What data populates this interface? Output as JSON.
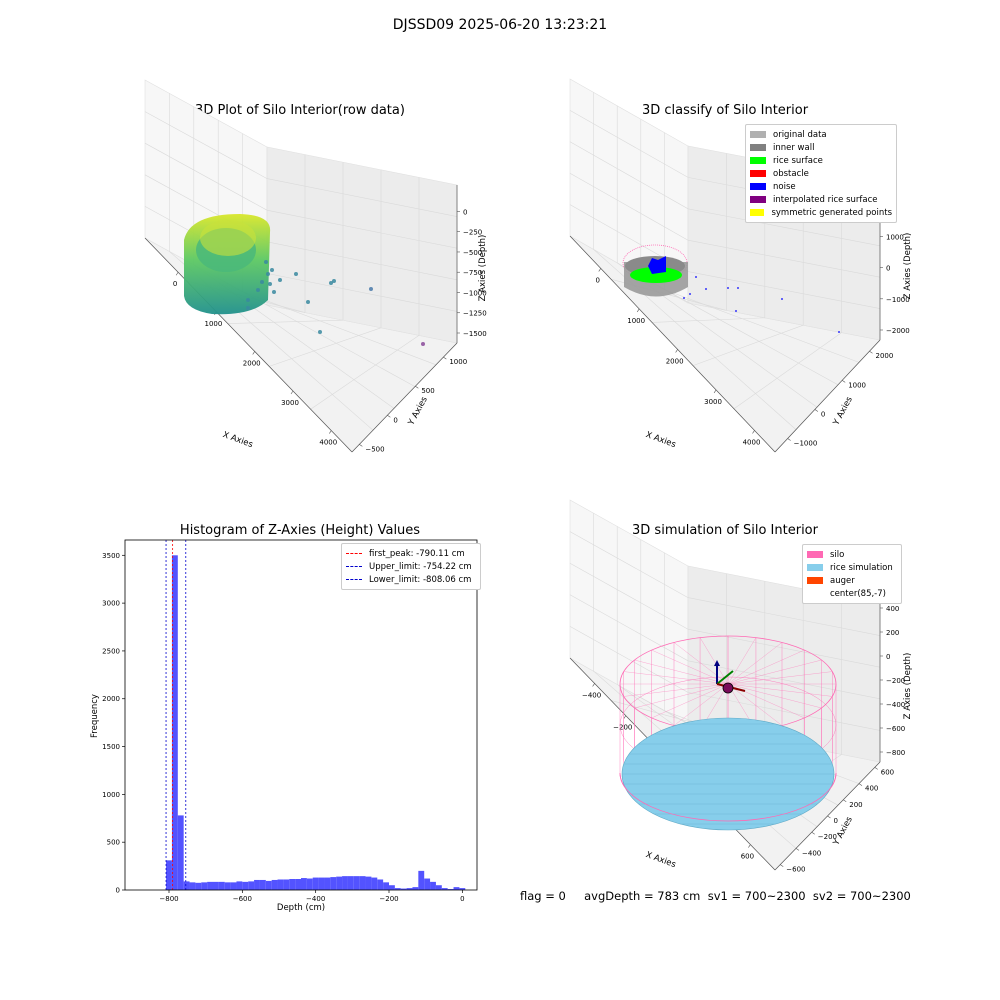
{
  "suptitle": "DJSSD09 2025-06-20 13:23:21",
  "colors": {
    "original": "#b0b0b0",
    "inner_wall": "#808080",
    "rice_surface": "#00ff00",
    "obstacle": "#ff0000",
    "noise": "#0000ff",
    "interpolated": "#800080",
    "symmetric": "#ffff00",
    "silo": "#ff69b4",
    "rice_sim": "#87ceeb",
    "auger": "#ff4500",
    "hist_bar": "#4a4aff"
  },
  "panels": {
    "p1": {
      "title": "3D Plot of Silo Interior(row data)"
    },
    "p2": {
      "title": "3D classify of Silo Interior"
    },
    "p3": {
      "title": "Histogram of Z-Axies (Height) Values"
    },
    "p4": {
      "title": "3D simulation of Silo Interior"
    }
  },
  "legend2": [
    {
      "label": "original data",
      "color": "#b0b0b0"
    },
    {
      "label": "inner wall",
      "color": "#808080"
    },
    {
      "label": "rice surface",
      "color": "#00ff00"
    },
    {
      "label": "obstacle",
      "color": "#ff0000"
    },
    {
      "label": "noise",
      "color": "#0000ff"
    },
    {
      "label": "interpolated rice surface",
      "color": "#800080"
    },
    {
      "label": "symmetric generated points",
      "color": "#ffff00"
    }
  ],
  "legend3": [
    {
      "label": "first_peak: -790.11 cm",
      "color": "#ff0000"
    },
    {
      "label": "Upper_limit: -754.22 cm",
      "color": "#0000cc"
    },
    {
      "label": "Lower_limit: -808.06 cm",
      "color": "#0000cc"
    }
  ],
  "legend4": [
    {
      "label": "silo",
      "color": "#ff69b4"
    },
    {
      "label": "rice simulation",
      "color": "#87ceeb"
    },
    {
      "label": "auger",
      "color": "#ff4500"
    },
    {
      "label": "center(85,-7)",
      "color": ""
    }
  ],
  "footer": "flag = 0     avgDepth = 783 cm  sv1 = 700~2300  sv2 = 700~2300",
  "chart_data": [
    {
      "type": "scatter",
      "title": "3D Plot of Silo Interior(row data)",
      "xlabel": "X Axies",
      "ylabel": "Y Axies",
      "zlabel": "Z Axies (Depth)",
      "xticks": [
        "0",
        "1000",
        "2000",
        "3000",
        "4000"
      ],
      "yticks": [
        "−500",
        "0",
        "500",
        "1000"
      ],
      "zticks": [
        "0",
        "−250",
        "−500",
        "−750",
        "−1000",
        "−1250",
        "−1500"
      ],
      "grid": true
    },
    {
      "type": "scatter",
      "title": "3D classify of Silo Interior",
      "xlabel": "X Axies",
      "ylabel": "Y Axies",
      "zlabel": "Z Axies (Depth)",
      "xticks": [
        "0",
        "1000",
        "2000",
        "3000",
        "4000"
      ],
      "yticks": [
        "−1000",
        "0",
        "1000",
        "2000"
      ],
      "zticks": [
        "1000",
        "0",
        "−1000",
        "−2000"
      ],
      "legend": "top-right",
      "grid": true
    },
    {
      "type": "bar",
      "title": "Histogram of Z-Axies (Height) Values",
      "xlabel": "Depth (cm)",
      "ylabel": "Frequency",
      "xlim": [
        -920,
        40
      ],
      "ylim": [
        0,
        3660
      ],
      "xticks": [
        -800,
        -600,
        -400,
        -200,
        0
      ],
      "yticks": [
        0,
        500,
        1000,
        1500,
        2000,
        2500,
        3000,
        3500
      ],
      "bin_width": 16,
      "bins_start": [
        -808,
        -792,
        -776,
        -760,
        -744,
        -728,
        -712,
        -696,
        -680,
        -664,
        -648,
        -632,
        -616,
        -600,
        -584,
        -568,
        -552,
        -536,
        -520,
        -504,
        -488,
        -472,
        -456,
        -440,
        -424,
        -408,
        -392,
        -376,
        -360,
        -344,
        -328,
        -312,
        -296,
        -280,
        -264,
        -248,
        -232,
        -216,
        -200,
        -184,
        -168,
        -152,
        -136,
        -120,
        -104,
        -88,
        -72,
        -56,
        -40,
        -24,
        -8
      ],
      "values": [
        310,
        3500,
        780,
        90,
        80,
        75,
        80,
        85,
        85,
        85,
        80,
        80,
        90,
        85,
        90,
        105,
        105,
        95,
        105,
        110,
        110,
        115,
        115,
        125,
        120,
        130,
        130,
        130,
        135,
        140,
        145,
        145,
        145,
        145,
        140,
        130,
        110,
        80,
        50,
        20,
        15,
        20,
        30,
        200,
        120,
        85,
        50,
        20,
        10,
        30,
        20
      ],
      "vlines": [
        {
          "name": "first_peak",
          "x": -790.11,
          "color": "#ff0000"
        },
        {
          "name": "Upper_limit",
          "x": -754.22,
          "color": "#0000cc"
        },
        {
          "name": "Lower_limit",
          "x": -808.06,
          "color": "#0000cc"
        }
      ],
      "legend": "top-right"
    },
    {
      "type": "area",
      "title": "3D simulation of Silo Interior",
      "xlabel": "X Axies",
      "ylabel": "Y Axies",
      "zlabel": "Z Axies (Depth)",
      "xticks": [
        "−400",
        "−200",
        "0",
        "200",
        "400",
        "600"
      ],
      "yticks": [
        "−600",
        "−400",
        "−200",
        "0",
        "200",
        "400",
        "600"
      ],
      "zticks": [
        "400",
        "200",
        "0",
        "−200",
        "−400",
        "−600",
        "−800"
      ],
      "legend": "top-right",
      "grid": true
    }
  ]
}
